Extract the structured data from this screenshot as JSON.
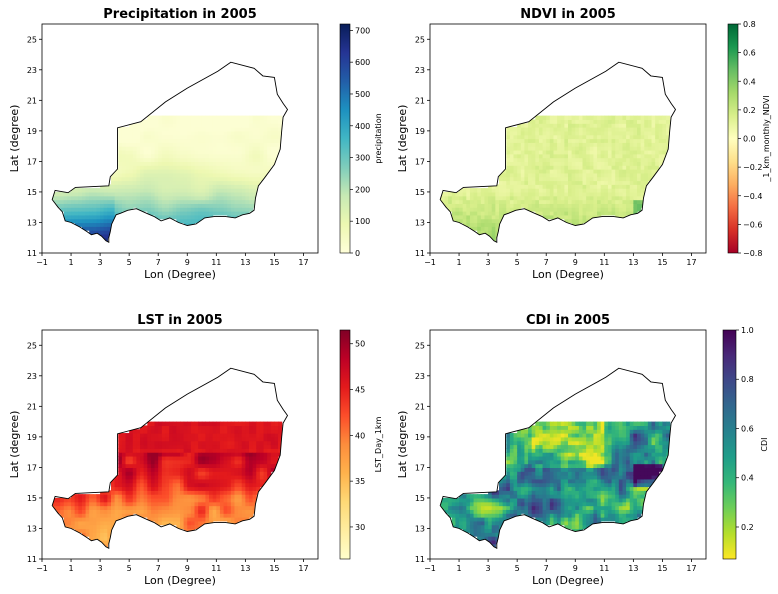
{
  "chart_data": [
    {
      "type": "heatmap",
      "title": "Precipitation in 2005",
      "xlabel": "Lon (Degree)",
      "ylabel": "Lat (degree)",
      "xticks": [
        "−1",
        "1",
        "3",
        "5",
        "7",
        "9",
        "11",
        "13",
        "15",
        "17"
      ],
      "yticks": [
        "11",
        "13",
        "15",
        "17",
        "19",
        "21",
        "23",
        "25"
      ],
      "xlim": [
        -1,
        18
      ],
      "ylim": [
        11,
        26
      ],
      "colorbar": {
        "label": "precipitation",
        "range": [
          0,
          720
        ],
        "ticks": [
          "0",
          "100",
          "200",
          "300",
          "400",
          "500",
          "600",
          "700"
        ],
        "tick_values": [
          0,
          100,
          200,
          300,
          400,
          500,
          600,
          700
        ],
        "colormap": "YlGnBu",
        "colors": [
          "#ffffd9",
          "#edf8b1",
          "#c7e9b4",
          "#7fcdbb",
          "#41b6c4",
          "#1d91c0",
          "#225ea8",
          "#253494",
          "#081d58"
        ]
      }
    },
    {
      "type": "heatmap",
      "title": "NDVI in 2005",
      "xlabel": "Lon (Degree)",
      "ylabel": "Lat (degree)",
      "xticks": [
        "−1",
        "1",
        "3",
        "5",
        "7",
        "9",
        "11",
        "13",
        "15",
        "17"
      ],
      "yticks": [
        "11",
        "13",
        "15",
        "17",
        "19",
        "21",
        "23",
        "25"
      ],
      "xlim": [
        -1,
        18
      ],
      "ylim": [
        11,
        26
      ],
      "colorbar": {
        "label": "_1_km_monthly_NDVI",
        "range": [
          -0.8,
          0.8
        ],
        "ticks": [
          "−0.8",
          "−0.6",
          "−0.4",
          "−0.2",
          "0.0",
          "0.2",
          "0.4",
          "0.6",
          "0.8"
        ],
        "tick_values": [
          -0.8,
          -0.6,
          -0.4,
          -0.2,
          0.0,
          0.2,
          0.4,
          0.6,
          0.8
        ],
        "colormap": "RdYlGn",
        "colors": [
          "#a50026",
          "#d73027",
          "#f46d43",
          "#fdae61",
          "#fee08b",
          "#ffffbf",
          "#d9ef8b",
          "#a6d96a",
          "#66bd63",
          "#1a9850",
          "#006837"
        ]
      }
    },
    {
      "type": "heatmap",
      "title": "LST in 2005",
      "xlabel": "Lon (Degree)",
      "ylabel": "Lat (degree)",
      "xticks": [
        "−1",
        "1",
        "3",
        "5",
        "7",
        "9",
        "11",
        "13",
        "15",
        "17"
      ],
      "yticks": [
        "11",
        "13",
        "15",
        "17",
        "19",
        "21",
        "23",
        "25"
      ],
      "xlim": [
        -1,
        18
      ],
      "ylim": [
        11,
        26
      ],
      "colorbar": {
        "label": "LST_Day_1km",
        "range": [
          26.5,
          51.5
        ],
        "ticks": [
          "30",
          "35",
          "40",
          "45",
          "50"
        ],
        "tick_values": [
          30,
          35,
          40,
          45,
          50
        ],
        "colormap": "YlOrRd",
        "colors": [
          "#ffffcc",
          "#ffeda0",
          "#fed976",
          "#feb24c",
          "#fd8d3c",
          "#fc4e2a",
          "#e31a1c",
          "#bd0026",
          "#800026"
        ]
      }
    },
    {
      "type": "heatmap",
      "title": "CDI in 2005",
      "xlabel": "Lon (Degree)",
      "ylabel": "Lat (degree)",
      "xticks": [
        "−1",
        "1",
        "3",
        "5",
        "7",
        "9",
        "11",
        "13",
        "15",
        "17"
      ],
      "yticks": [
        "11",
        "13",
        "15",
        "17",
        "19",
        "21",
        "23",
        "25"
      ],
      "xlim": [
        -1,
        18
      ],
      "ylim": [
        11,
        26
      ],
      "colorbar": {
        "label": "CDI",
        "range": [
          0.07,
          1.0
        ],
        "ticks": [
          "0.2",
          "0.4",
          "0.6",
          "0.8",
          "1.0"
        ],
        "tick_values": [
          0.2,
          0.4,
          0.6,
          0.8,
          1.0
        ],
        "colormap": "viridis_r",
        "colors": [
          "#fde725",
          "#b5de2b",
          "#6ece58",
          "#35b779",
          "#1f9e89",
          "#26828e",
          "#31688e",
          "#3e4989",
          "#482878",
          "#440154"
        ]
      }
    }
  ],
  "region_note_colors": {
    "outline": "#000000",
    "panel_background": "#ffffff"
  }
}
